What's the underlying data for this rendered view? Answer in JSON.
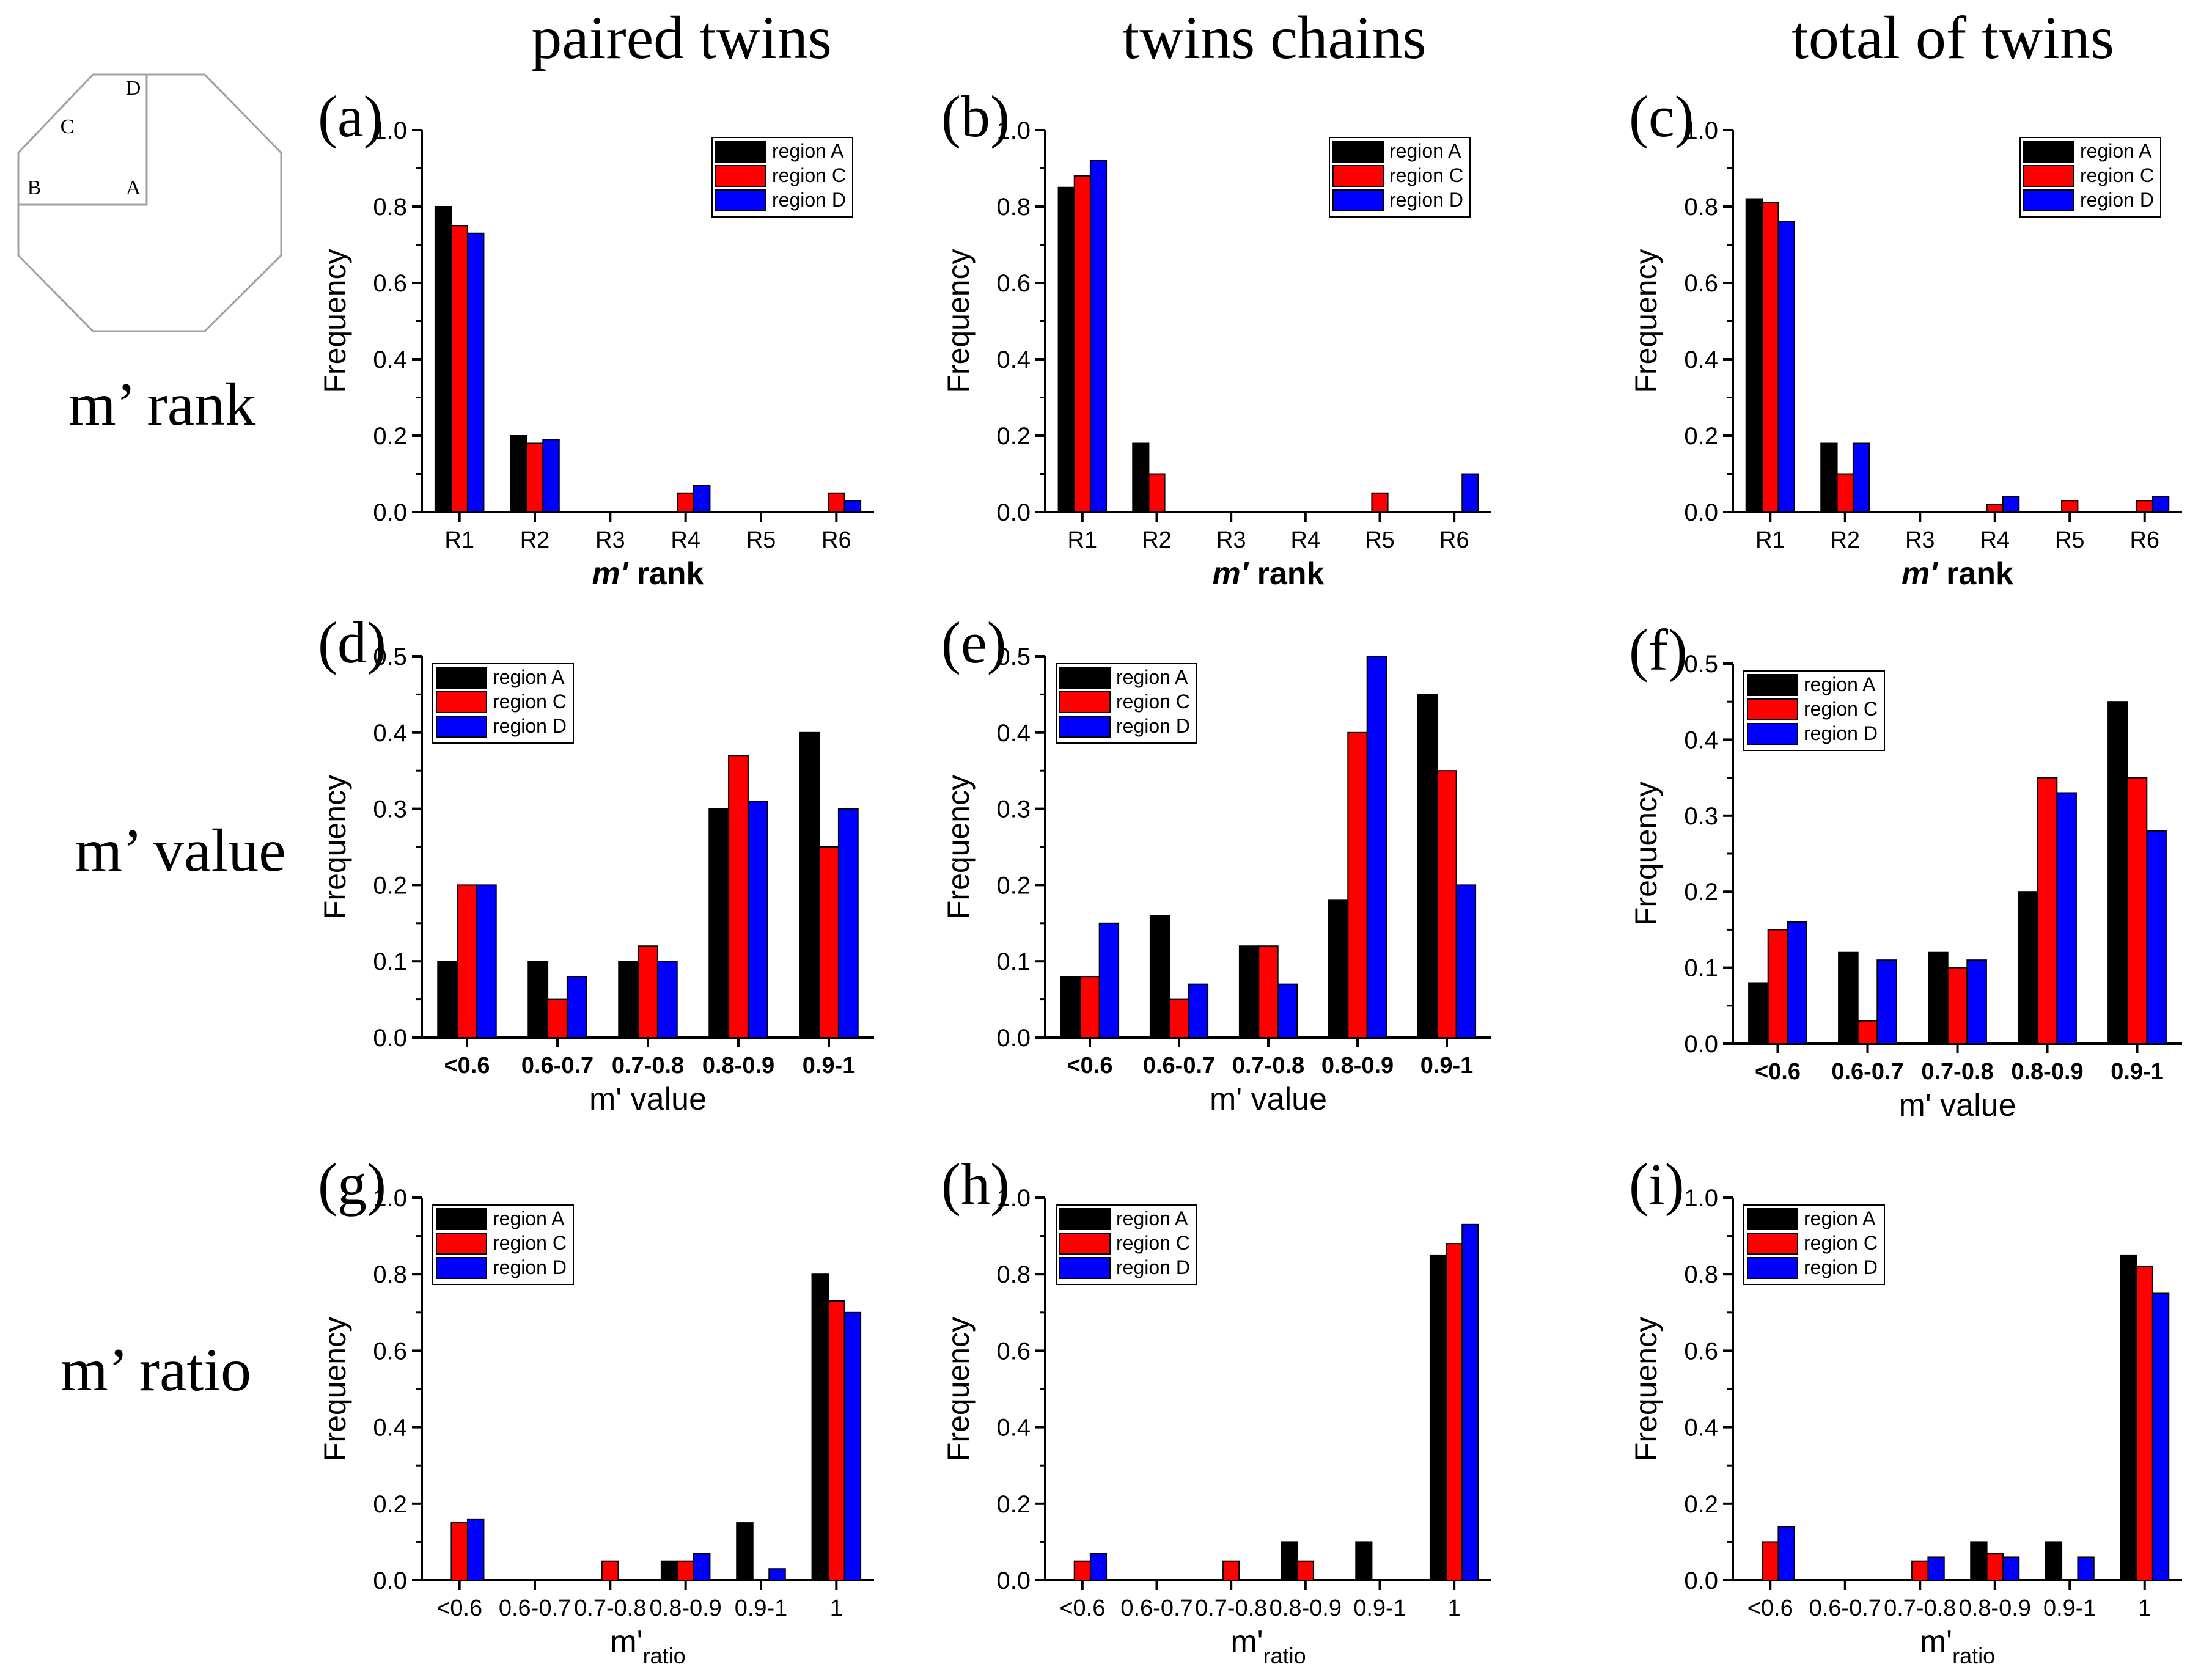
{
  "column_titles": [
    "paired twins",
    "twins chains",
    "total of twins"
  ],
  "row_titles": [
    "m’ rank",
    "m’ value",
    "m’ ratio"
  ],
  "octagon_labels": {
    "d": "D",
    "c": "C",
    "b": "B",
    "a": "A"
  },
  "colors": {
    "region_a": "#000000",
    "region_c": "#ff0000",
    "region_d": "#0000ff"
  },
  "chart_data": [
    {
      "panel": "(a)",
      "type": "bar",
      "title": "paired twins",
      "xlabel": "m' rank",
      "xlabel_main": "m'",
      "xlabel_rest": " rank",
      "ylabel": "Frequency",
      "ylim": [
        0,
        1.0
      ],
      "yticks": [
        "0.0",
        "0.2",
        "0.4",
        "0.6",
        "0.8",
        "1.0"
      ],
      "categories": [
        "R1",
        "R2",
        "R3",
        "R4",
        "R5",
        "R6"
      ],
      "legend_position": "top-right",
      "series": [
        {
          "name": "region A",
          "color": "#000000",
          "values": [
            0.8,
            0.2,
            0,
            0,
            0,
            0
          ]
        },
        {
          "name": "region C",
          "color": "#ff0000",
          "values": [
            0.75,
            0.18,
            0,
            0.05,
            0,
            0.05
          ]
        },
        {
          "name": "region D",
          "color": "#0000ff",
          "values": [
            0.73,
            0.19,
            0,
            0.07,
            0,
            0.03
          ]
        }
      ]
    },
    {
      "panel": "(b)",
      "type": "bar",
      "title": "twins chains",
      "xlabel": "m' rank",
      "xlabel_main": "m'",
      "xlabel_rest": " rank",
      "ylabel": "Frequency",
      "ylim": [
        0,
        1.0
      ],
      "yticks": [
        "0.0",
        "0.2",
        "0.4",
        "0.6",
        "0.8",
        "1.0"
      ],
      "categories": [
        "R1",
        "R2",
        "R3",
        "R4",
        "R5",
        "R6"
      ],
      "legend_position": "top-right",
      "series": [
        {
          "name": "region A",
          "color": "#000000",
          "values": [
            0.85,
            0.18,
            0,
            0,
            0,
            0
          ]
        },
        {
          "name": "region C",
          "color": "#ff0000",
          "values": [
            0.88,
            0.1,
            0,
            0,
            0.05,
            0
          ]
        },
        {
          "name": "region D",
          "color": "#0000ff",
          "values": [
            0.92,
            0,
            0,
            0,
            0,
            0.1
          ]
        }
      ]
    },
    {
      "panel": "(c)",
      "type": "bar",
      "title": "total of twins",
      "xlabel": "m' rank",
      "xlabel_main": "m'",
      "xlabel_rest": " rank",
      "ylabel": "Frequency",
      "ylim": [
        0,
        1.0
      ],
      "yticks": [
        "0.0",
        "0.2",
        "0.4",
        "0.6",
        "0.8",
        "1.0"
      ],
      "categories": [
        "R1",
        "R2",
        "R3",
        "R4",
        "R5",
        "R6"
      ],
      "legend_position": "top-right",
      "series": [
        {
          "name": "region A",
          "color": "#000000",
          "values": [
            0.82,
            0.18,
            0,
            0,
            0,
            0
          ]
        },
        {
          "name": "region C",
          "color": "#ff0000",
          "values": [
            0.81,
            0.1,
            0,
            0.02,
            0.03,
            0.03
          ]
        },
        {
          "name": "region D",
          "color": "#0000ff",
          "values": [
            0.76,
            0.18,
            0,
            0.04,
            0,
            0.04
          ]
        }
      ]
    },
    {
      "panel": "(d)",
      "type": "bar",
      "xlabel": "m' value",
      "xlabel_main": "m'",
      "xlabel_rest": " value",
      "ylabel": "Frequency",
      "ylim": [
        0,
        0.5
      ],
      "yticks": [
        "0.0",
        "0.1",
        "0.2",
        "0.3",
        "0.4",
        "0.5"
      ],
      "categories": [
        "<0.6",
        "0.6-0.7",
        "0.7-0.8",
        "0.8-0.9",
        "0.9-1"
      ],
      "legend_position": "top-left",
      "series": [
        {
          "name": "region A",
          "color": "#000000",
          "values": [
            0.1,
            0.1,
            0.1,
            0.3,
            0.4
          ]
        },
        {
          "name": "region C",
          "color": "#ff0000",
          "values": [
            0.2,
            0.05,
            0.12,
            0.37,
            0.25
          ]
        },
        {
          "name": "region D",
          "color": "#0000ff",
          "values": [
            0.2,
            0.08,
            0.1,
            0.31,
            0.3
          ]
        }
      ]
    },
    {
      "panel": "(e)",
      "type": "bar",
      "xlabel": "m' value",
      "xlabel_main": "m'",
      "xlabel_rest": " value",
      "ylabel": "Frequency",
      "ylim": [
        0,
        0.5
      ],
      "yticks": [
        "0.0",
        "0.1",
        "0.2",
        "0.3",
        "0.4",
        "0.5"
      ],
      "categories": [
        "<0.6",
        "0.6-0.7",
        "0.7-0.8",
        "0.8-0.9",
        "0.9-1"
      ],
      "legend_position": "top-left",
      "series": [
        {
          "name": "region A",
          "color": "#000000",
          "values": [
            0.08,
            0.16,
            0.12,
            0.18,
            0.45
          ]
        },
        {
          "name": "region C",
          "color": "#ff0000",
          "values": [
            0.08,
            0.05,
            0.12,
            0.4,
            0.35
          ]
        },
        {
          "name": "region D",
          "color": "#0000ff",
          "values": [
            0.15,
            0.07,
            0.07,
            0.5,
            0.2
          ]
        }
      ]
    },
    {
      "panel": "(f)",
      "type": "bar",
      "xlabel": "m' value",
      "xlabel_main": "m'",
      "xlabel_rest": " value",
      "ylabel": "Frequency",
      "ylim": [
        0,
        0.5
      ],
      "yticks": [
        "0.0",
        "0.1",
        "0.2",
        "0.3",
        "0.4",
        "0.5"
      ],
      "categories": [
        "<0.6",
        "0.6-0.7",
        "0.7-0.8",
        "0.8-0.9",
        "0.9-1"
      ],
      "legend_position": "top-left",
      "series": [
        {
          "name": "region A",
          "color": "#000000",
          "values": [
            0.08,
            0.12,
            0.12,
            0.2,
            0.45
          ]
        },
        {
          "name": "region C",
          "color": "#ff0000",
          "values": [
            0.15,
            0.03,
            0.1,
            0.35,
            0.35
          ]
        },
        {
          "name": "region D",
          "color": "#0000ff",
          "values": [
            0.16,
            0.11,
            0.11,
            0.33,
            0.28
          ]
        }
      ]
    },
    {
      "panel": "(g)",
      "type": "bar",
      "xlabel": "m'ratio",
      "xlabel_main": "m'",
      "xlabel_sub": "ratio",
      "ylabel": "Frequency",
      "ylim": [
        0,
        1.0
      ],
      "yticks": [
        "0.0",
        "0.2",
        "0.4",
        "0.6",
        "0.8",
        "1.0"
      ],
      "categories": [
        "<0.6",
        "0.6-0.7",
        "0.7-0.8",
        "0.8-0.9",
        "0.9-1",
        "1"
      ],
      "legend_position": "top-left",
      "series": [
        {
          "name": "region A",
          "color": "#000000",
          "values": [
            0,
            0,
            0,
            0.05,
            0.15,
            0.8
          ]
        },
        {
          "name": "region C",
          "color": "#ff0000",
          "values": [
            0.15,
            0,
            0.05,
            0.05,
            0,
            0.73
          ]
        },
        {
          "name": "region D",
          "color": "#0000ff",
          "values": [
            0.16,
            0,
            0,
            0.07,
            0.03,
            0.7
          ]
        }
      ]
    },
    {
      "panel": "(h)",
      "type": "bar",
      "xlabel": "m'ratio",
      "xlabel_main": "m'",
      "xlabel_sub": "ratio",
      "ylabel": "Frequency",
      "ylim": [
        0,
        1.0
      ],
      "yticks": [
        "0.0",
        "0.2",
        "0.4",
        "0.6",
        "0.8",
        "1.0"
      ],
      "categories": [
        "<0.6",
        "0.6-0.7",
        "0.7-0.8",
        "0.8-0.9",
        "0.9-1",
        "1"
      ],
      "legend_position": "top-left",
      "series": [
        {
          "name": "region A",
          "color": "#000000",
          "values": [
            0,
            0,
            0,
            0.1,
            0.1,
            0.85
          ]
        },
        {
          "name": "region C",
          "color": "#ff0000",
          "values": [
            0.05,
            0,
            0.05,
            0.05,
            0,
            0.88
          ]
        },
        {
          "name": "region D",
          "color": "#0000ff",
          "values": [
            0.07,
            0,
            0,
            0,
            0,
            0.93
          ]
        }
      ]
    },
    {
      "panel": "(i)",
      "type": "bar",
      "xlabel": "m'ratio",
      "xlabel_main": "m'",
      "xlabel_sub": "ratio",
      "ylabel": "Frequency",
      "ylim": [
        0,
        1.0
      ],
      "yticks": [
        "0.0",
        "0.2",
        "0.4",
        "0.6",
        "0.8",
        "1.0"
      ],
      "categories": [
        "<0.6",
        "0.6-0.7",
        "0.7-0.8",
        "0.8-0.9",
        "0.9-1",
        "1"
      ],
      "legend_position": "top-left",
      "series": [
        {
          "name": "region A",
          "color": "#000000",
          "values": [
            0,
            0,
            0,
            0.1,
            0.1,
            0.85
          ]
        },
        {
          "name": "region C",
          "color": "#ff0000",
          "values": [
            0.1,
            0,
            0.05,
            0.07,
            0,
            0.82
          ]
        },
        {
          "name": "region D",
          "color": "#0000ff",
          "values": [
            0.14,
            0,
            0.06,
            0.06,
            0.06,
            0.75
          ]
        }
      ]
    }
  ]
}
